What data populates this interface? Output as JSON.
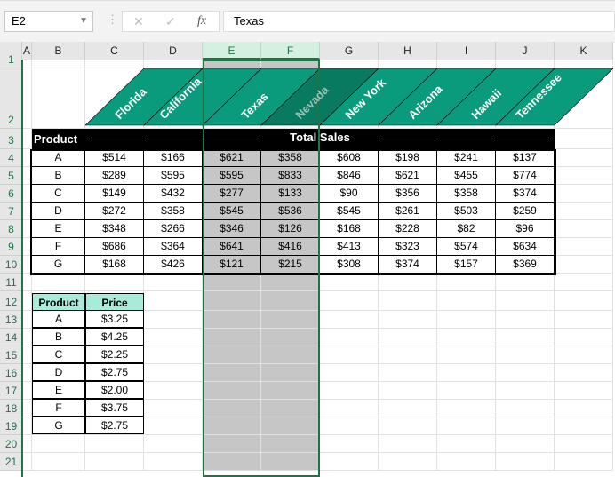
{
  "name_box": "E2",
  "formula_bar": {
    "cancel_icon": "x-icon",
    "enter_icon": "check-icon",
    "fx_label": "fx",
    "value": "Texas"
  },
  "columns": [
    "A",
    "B",
    "C",
    "D",
    "E",
    "F",
    "G",
    "H",
    "I",
    "J",
    "K"
  ],
  "rows": [
    "1",
    "2",
    "3",
    "4",
    "5",
    "6",
    "7",
    "8",
    "9",
    "10",
    "11",
    "12",
    "13",
    "14",
    "15",
    "16",
    "17",
    "18",
    "19",
    "20",
    "21"
  ],
  "states": [
    "Florida",
    "California",
    "Texas",
    "Nevada",
    "New York",
    "Arizona",
    "Hawaii",
    "Tennessee"
  ],
  "sales_table": {
    "product_header": "Product",
    "title": "Total Sales",
    "rows": [
      [
        "A",
        "$514",
        "$166",
        "$621",
        "$358",
        "$608",
        "$198",
        "$241",
        "$137"
      ],
      [
        "B",
        "$289",
        "$595",
        "$595",
        "$833",
        "$846",
        "$621",
        "$455",
        "$774"
      ],
      [
        "C",
        "$149",
        "$432",
        "$277",
        "$133",
        "$90",
        "$356",
        "$358",
        "$374"
      ],
      [
        "D",
        "$272",
        "$358",
        "$545",
        "$536",
        "$545",
        "$261",
        "$503",
        "$259"
      ],
      [
        "E",
        "$348",
        "$266",
        "$346",
        "$126",
        "$168",
        "$228",
        "$82",
        "$96"
      ],
      [
        "F",
        "$686",
        "$364",
        "$641",
        "$416",
        "$413",
        "$323",
        "$574",
        "$634"
      ],
      [
        "G",
        "$168",
        "$426",
        "$121",
        "$215",
        "$308",
        "$374",
        "$157",
        "$369"
      ]
    ]
  },
  "price_table": {
    "headers": [
      "Product",
      "Price"
    ],
    "rows": [
      [
        "A",
        "$3.25"
      ],
      [
        "B",
        "$4.25"
      ],
      [
        "C",
        "$2.25"
      ],
      [
        "D",
        "$2.75"
      ],
      [
        "E",
        "$2.00"
      ],
      [
        "F",
        "$3.75"
      ],
      [
        "G",
        "$2.75"
      ]
    ]
  },
  "colors": {
    "header_green": "#0a9b7c",
    "selected_green": "#077a5f",
    "selection_border": "#217346"
  }
}
